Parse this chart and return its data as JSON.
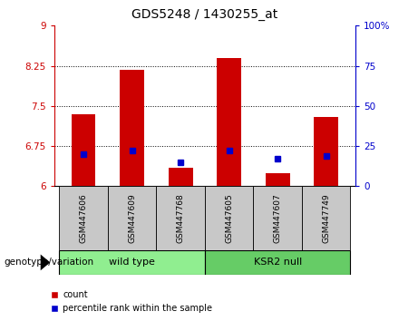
{
  "title": "GDS5248 / 1430255_at",
  "samples": [
    "GSM447606",
    "GSM447609",
    "GSM447768",
    "GSM447605",
    "GSM447607",
    "GSM447749"
  ],
  "group_labels": [
    "wild type",
    "KSR2 null"
  ],
  "red_values": [
    7.35,
    8.17,
    6.35,
    8.4,
    6.25,
    7.3
  ],
  "blue_values_pct": [
    20,
    22,
    15,
    22,
    17,
    19
  ],
  "ylim_left": [
    6.0,
    9.0
  ],
  "ylim_right": [
    0,
    100
  ],
  "yticks_left": [
    6.0,
    6.75,
    7.5,
    8.25,
    9.0
  ],
  "ytick_labels_left": [
    "6",
    "6.75",
    "7.5",
    "8.25",
    "9"
  ],
  "yticks_right": [
    0,
    25,
    50,
    75,
    100
  ],
  "ytick_labels_right": [
    "0",
    "25",
    "50",
    "75",
    "100%"
  ],
  "grid_lines": [
    6.75,
    7.5,
    8.25
  ],
  "xlabel": "genotype/variation",
  "legend_count": "count",
  "legend_pct": "percentile rank within the sample",
  "red_color": "#cc0000",
  "blue_color": "#0000cc",
  "wild_type_color": "#90ee90",
  "ksr2_null_color": "#66cc66",
  "sample_bg_color": "#c8c8c8",
  "bar_width": 0.5
}
